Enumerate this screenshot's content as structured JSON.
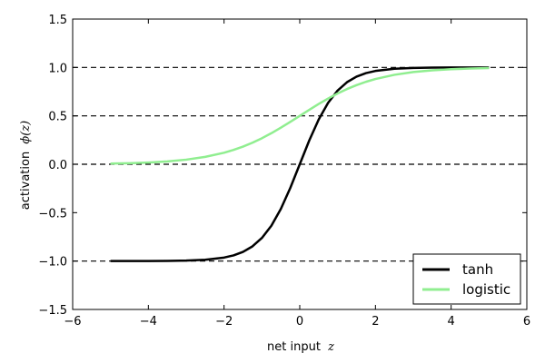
{
  "chart_data": {
    "type": "line",
    "title": "",
    "xlabel": "net input",
    "xlabel_math": "z",
    "ylabel": "activation",
    "ylabel_math": "ϕ(z)",
    "xlim": [
      -6,
      6
    ],
    "ylim": [
      -1.5,
      1.5
    ],
    "x_ticks": [
      -6,
      -4,
      -2,
      0,
      2,
      4,
      6
    ],
    "x_tick_labels": [
      "−6",
      "−4",
      "−2",
      "0",
      "2",
      "4",
      "6"
    ],
    "y_ticks": [
      -1.5,
      -1.0,
      -0.5,
      0.0,
      0.5,
      1.0,
      1.5
    ],
    "y_tick_labels": [
      "−1.5",
      "−1.0",
      "−0.5",
      "0.0",
      "0.5",
      "1.0",
      "1.5"
    ],
    "reference_lines": {
      "style": "dashed",
      "color": "#000000",
      "y": [
        -1.0,
        0.0,
        0.5,
        1.0
      ]
    },
    "grid": false,
    "legend_placement": "lower-right",
    "series": [
      {
        "name": "tanh",
        "color": "#000000",
        "x": [
          -5.0,
          -4.5,
          -4.0,
          -3.5,
          -3.0,
          -2.5,
          -2.0,
          -1.75,
          -1.5,
          -1.25,
          -1.0,
          -0.75,
          -0.5,
          -0.25,
          0.0,
          0.25,
          0.5,
          0.75,
          1.0,
          1.25,
          1.5,
          1.75,
          2.0,
          2.5,
          3.0,
          3.5,
          4.0,
          4.5,
          5.0
        ],
        "y": [
          -0.9999,
          -0.9998,
          -0.9993,
          -0.9982,
          -0.9951,
          -0.9866,
          -0.964,
          -0.9414,
          -0.9051,
          -0.8483,
          -0.7616,
          -0.6351,
          -0.4621,
          -0.2449,
          0.0,
          0.2449,
          0.4621,
          0.6351,
          0.7616,
          0.8483,
          0.9051,
          0.9414,
          0.964,
          0.9866,
          0.9951,
          0.9982,
          0.9993,
          0.9998,
          0.9999
        ]
      },
      {
        "name": "logistic",
        "color": "#90ee90",
        "x": [
          -5.0,
          -4.5,
          -4.0,
          -3.5,
          -3.0,
          -2.5,
          -2.0,
          -1.75,
          -1.5,
          -1.25,
          -1.0,
          -0.75,
          -0.5,
          -0.25,
          0.0,
          0.25,
          0.5,
          0.75,
          1.0,
          1.25,
          1.5,
          1.75,
          2.0,
          2.5,
          3.0,
          3.5,
          4.0,
          4.5,
          5.0
        ],
        "y": [
          0.0067,
          0.011,
          0.018,
          0.0293,
          0.0474,
          0.0759,
          0.1192,
          0.148,
          0.1824,
          0.2227,
          0.2689,
          0.3208,
          0.3775,
          0.4378,
          0.5,
          0.5622,
          0.6225,
          0.6792,
          0.7311,
          0.7773,
          0.8176,
          0.852,
          0.8808,
          0.9241,
          0.9526,
          0.9707,
          0.982,
          0.989,
          0.9933
        ]
      }
    ]
  }
}
